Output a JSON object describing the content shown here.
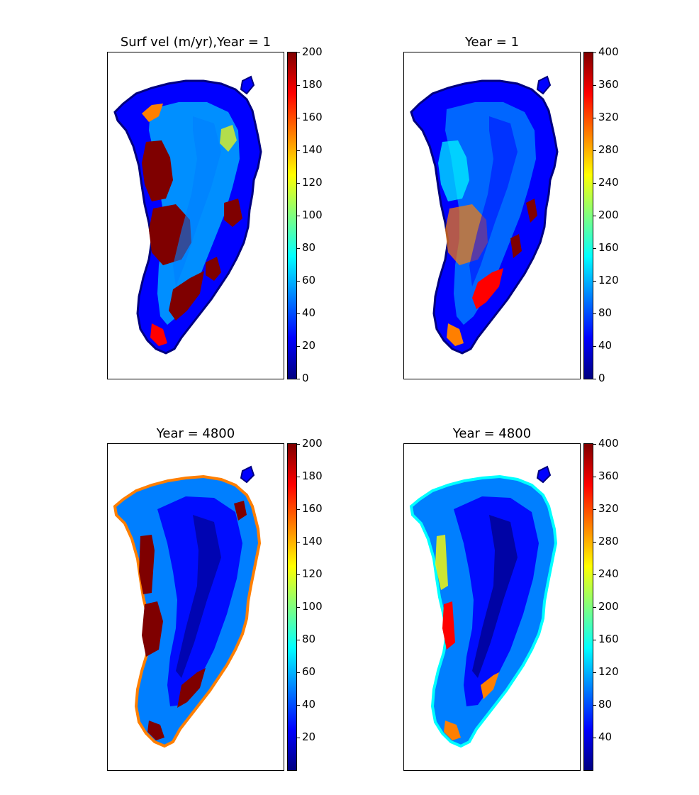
{
  "figure": {
    "colormap": "jet",
    "colormap_stops": [
      "#00007f",
      "#0000ff",
      "#007fff",
      "#00ffff",
      "#7fff7f",
      "#ffff00",
      "#ff7f00",
      "#ff0000",
      "#7f0000"
    ]
  },
  "chart_data": [
    {
      "type": "heatmap",
      "title": "Surf vel (m/yr),Year = 1",
      "colorbar": {
        "min": 0,
        "max": 200,
        "ticks": [
          0,
          20,
          40,
          60,
          80,
          100,
          120,
          140,
          160,
          180,
          200
        ]
      }
    },
    {
      "type": "heatmap",
      "title": "Year = 1",
      "colorbar": {
        "min": 0,
        "max": 400,
        "ticks": [
          0,
          40,
          80,
          120,
          160,
          200,
          240,
          280,
          320,
          360,
          400
        ]
      }
    },
    {
      "type": "heatmap",
      "title": "Year = 4800",
      "colorbar": {
        "min": 0,
        "max": 200,
        "ticks": [
          20,
          40,
          60,
          80,
          100,
          120,
          140,
          160,
          180,
          200
        ]
      }
    },
    {
      "type": "heatmap",
      "title": "Year = 4800",
      "colorbar": {
        "min": 0,
        "max": 400,
        "ticks": [
          40,
          80,
          120,
          160,
          200,
          240,
          280,
          320,
          360,
          400
        ]
      }
    }
  ]
}
